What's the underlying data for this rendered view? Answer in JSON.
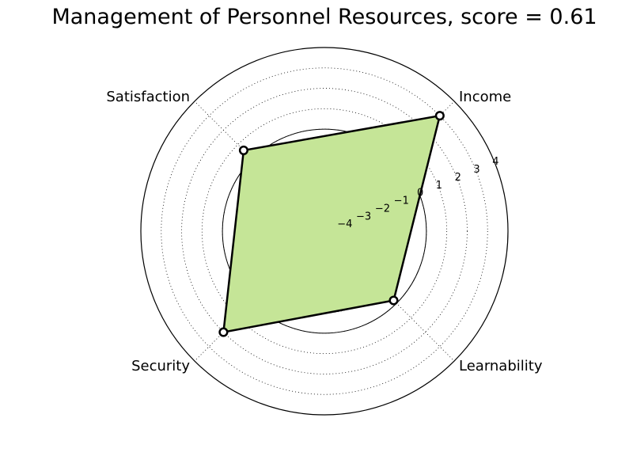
{
  "chart_data": {
    "type": "radar",
    "title": "Management of Personnel Resources, score = 0.61",
    "axes": [
      "Income",
      "Learnability",
      "Security",
      "Satisfaction"
    ],
    "series": [
      {
        "values": [
          3.0,
          -0.2,
          2.0,
          0.6
        ],
        "fill_color": "#c5e597",
        "line_color": "#000000"
      }
    ],
    "rlim": [
      -5,
      4
    ],
    "r_ticks": [
      -4,
      -3,
      -2,
      -1,
      0,
      1,
      2,
      3,
      4
    ],
    "r_tick_labels": [
      "−4",
      "−3",
      "−2",
      "−1",
      "0",
      "1",
      "2",
      "3",
      "4"
    ],
    "grid": true,
    "reference_circle_value": 0
  }
}
